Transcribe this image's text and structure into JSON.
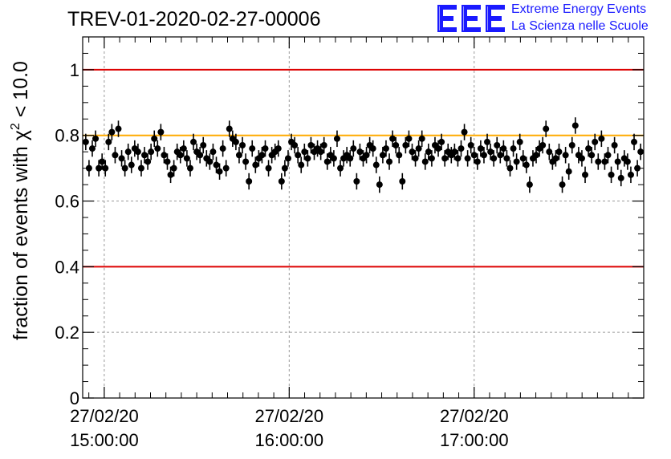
{
  "chart_data": {
    "type": "scatter",
    "title": "TREV-01-2020-02-27-00006",
    "ylabel_prefix": "fraction of events with ",
    "ylabel_symbol": "χ",
    "ylabel_exp": "2",
    "ylabel_suffix": " < 10.0",
    "xlabel": "",
    "ylim": [
      0,
      1.1
    ],
    "y_ticks": [
      0,
      0.2,
      0.4,
      0.6,
      0.8,
      1
    ],
    "y_tick_labels": [
      "0",
      "0.2",
      "0.4",
      "0.6",
      "0.8",
      "1"
    ],
    "x_axis_type": "time",
    "xlim": [
      "27/02/20 14:53:00",
      "27/02/20 17:55:00"
    ],
    "x_ticks": [
      "27/02/20 15:00:00",
      "27/02/20 16:00:00",
      "27/02/20 17:00:00"
    ],
    "x_tick_labels": [
      {
        "date": "27/02/20",
        "time": "15:00:00"
      },
      {
        "date": "27/02/20",
        "time": "16:00:00"
      },
      {
        "date": "27/02/20",
        "time": "17:00:00"
      }
    ],
    "grid": true,
    "reference_lines": [
      {
        "y": 1.0,
        "color": "#dd0000"
      },
      {
        "y": 0.4,
        "color": "#dd0000"
      },
      {
        "y": 0.8,
        "color": "#ffaa00"
      }
    ],
    "error_bar": 0.025,
    "series": [
      {
        "marker_color": "#000000",
        "y": [
          0.78,
          0.7,
          0.76,
          0.79,
          0.7,
          0.72,
          0.7,
          0.78,
          0.81,
          0.74,
          0.82,
          0.73,
          0.7,
          0.75,
          0.71,
          0.76,
          0.75,
          0.7,
          0.74,
          0.72,
          0.75,
          0.79,
          0.76,
          0.81,
          0.74,
          0.72,
          0.68,
          0.7,
          0.75,
          0.74,
          0.76,
          0.73,
          0.7,
          0.78,
          0.75,
          0.74,
          0.77,
          0.73,
          0.72,
          0.75,
          0.71,
          0.69,
          0.76,
          0.7,
          0.82,
          0.79,
          0.78,
          0.74,
          0.77,
          0.72,
          0.66,
          0.76,
          0.71,
          0.73,
          0.74,
          0.76,
          0.7,
          0.74,
          0.75,
          0.76,
          0.66,
          0.7,
          0.73,
          0.78,
          0.77,
          0.74,
          0.71,
          0.75,
          0.73,
          0.77,
          0.75,
          0.76,
          0.75,
          0.77,
          0.72,
          0.74,
          0.73,
          0.79,
          0.7,
          0.73,
          0.74,
          0.73,
          0.76,
          0.66,
          0.75,
          0.73,
          0.74,
          0.77,
          0.76,
          0.71,
          0.65,
          0.74,
          0.76,
          0.72,
          0.79,
          0.77,
          0.74,
          0.66,
          0.77,
          0.79,
          0.75,
          0.73,
          0.76,
          0.79,
          0.72,
          0.75,
          0.73,
          0.77,
          0.76,
          0.78,
          0.73,
          0.75,
          0.74,
          0.75,
          0.73,
          0.76,
          0.81,
          0.73,
          0.77,
          0.74,
          0.72,
          0.76,
          0.74,
          0.78,
          0.75,
          0.73,
          0.77,
          0.74,
          0.76,
          0.73,
          0.7,
          0.76,
          0.72,
          0.78,
          0.73,
          0.71,
          0.65,
          0.73,
          0.74,
          0.76,
          0.77,
          0.82,
          0.75,
          0.72,
          0.73,
          0.75,
          0.65,
          0.74,
          0.69,
          0.77,
          0.83,
          0.74,
          0.73,
          0.68,
          0.76,
          0.74,
          0.78,
          0.72,
          0.79,
          0.72,
          0.74,
          0.68,
          0.77,
          0.72,
          0.67,
          0.73,
          0.72,
          0.68,
          0.78,
          0.7,
          0.75
        ]
      }
    ]
  }
}
